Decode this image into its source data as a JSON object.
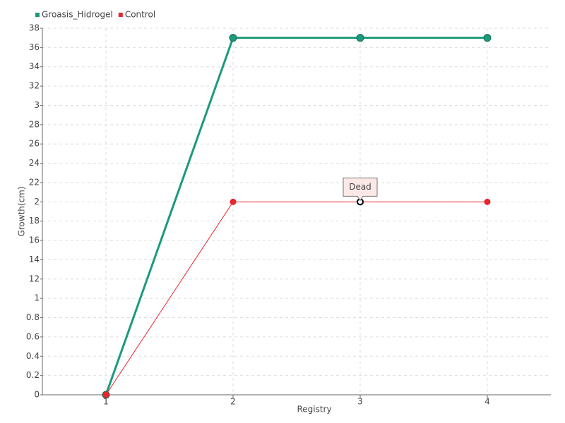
{
  "chart_data": {
    "type": "line",
    "x_label": "Registry",
    "y_label": "Growth(cm)",
    "categories": [
      "1",
      "2",
      "3",
      "4"
    ],
    "series": [
      {
        "name": "Groasis_Hidrogel",
        "color": "#1b9a7c",
        "values": [
          0,
          3.7,
          3.7,
          3.7
        ]
      },
      {
        "name": "Control",
        "color": "#e8242c",
        "values": [
          0,
          2,
          2,
          2
        ],
        "point_labels": [
          null,
          null,
          "Dead",
          null
        ]
      }
    ],
    "ylim": [
      0,
      3.8
    ],
    "yticks": [
      0,
      0.2,
      0.4,
      0.6,
      0.8,
      1,
      {
        "value": 1.2,
        "label": "12"
      },
      {
        "value": 1.4,
        "label": "14"
      },
      {
        "value": 1.6,
        "label": "16"
      },
      {
        "value": 1.8,
        "label": "18"
      },
      2,
      {
        "value": 2.2,
        "label": "22"
      },
      {
        "value": 2.4,
        "label": "24"
      },
      {
        "value": 2.6,
        "label": "26"
      },
      {
        "value": 2.8,
        "label": "28"
      },
      3,
      {
        "value": 3.2,
        "label": "32"
      },
      {
        "value": 3.4,
        "label": "34"
      },
      {
        "value": 3.6,
        "label": "36"
      },
      {
        "value": 3.8,
        "label": "38"
      }
    ],
    "grid": true,
    "legend": "top-left"
  }
}
